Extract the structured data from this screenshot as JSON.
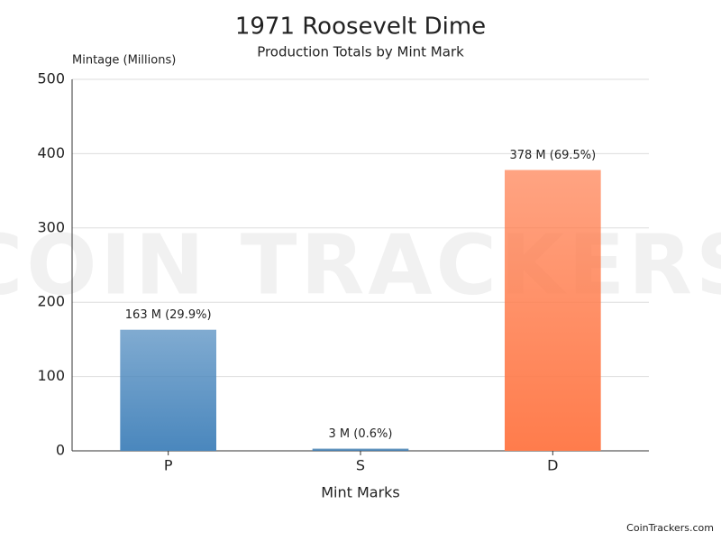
{
  "chart_data": {
    "type": "bar",
    "title": "1971 Roosevelt Dime",
    "subtitle": "Production Totals by Mint Mark",
    "y_label": "Mintage (Millions)",
    "x_label": "Mint Marks",
    "watermark": "COIN TRACKERS",
    "credit": "CoinTrackers.com",
    "categories": [
      "P",
      "S",
      "D"
    ],
    "values": [
      163,
      3,
      378
    ],
    "value_labels": [
      "163 M (29.9%)",
      "3 M (0.6%)",
      "378 M (69.5%)"
    ],
    "colors": [
      "#4a87bd",
      "#3f7cb0",
      "#ff7c4c"
    ],
    "ylim": [
      0,
      500
    ],
    "yticks": [
      0,
      100,
      200,
      300,
      400,
      500
    ],
    "grid": true
  }
}
